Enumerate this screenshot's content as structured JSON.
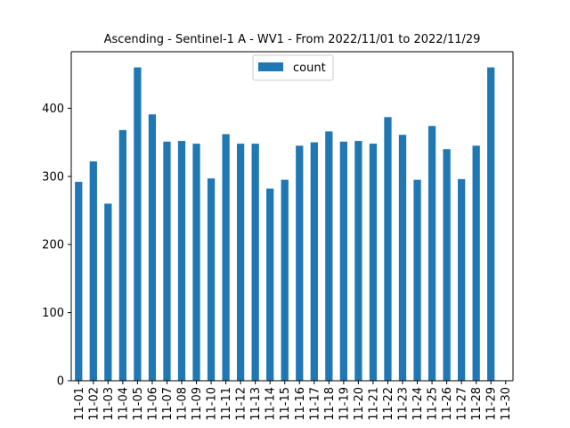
{
  "chart_data": {
    "type": "bar",
    "title": "Ascending - Sentinel-1 A - WV1 - From 2022/11/01 to 2022/11/29",
    "xlabel": "",
    "ylabel": "",
    "categories": [
      "11-01",
      "11-02",
      "11-03",
      "11-04",
      "11-05",
      "11-06",
      "11-07",
      "11-08",
      "11-09",
      "11-10",
      "11-11",
      "11-12",
      "11-13",
      "11-14",
      "11-15",
      "11-16",
      "11-17",
      "11-18",
      "11-19",
      "11-20",
      "11-21",
      "11-22",
      "11-23",
      "11-24",
      "11-25",
      "11-26",
      "11-27",
      "11-28",
      "11-29",
      "11-30"
    ],
    "series": [
      {
        "name": "count",
        "color": "#1f77b4",
        "values": [
          292,
          322,
          260,
          368,
          460,
          391,
          351,
          352,
          348,
          297,
          362,
          348,
          348,
          282,
          295,
          345,
          350,
          366,
          351,
          352,
          348,
          387,
          361,
          295,
          374,
          340,
          296,
          345,
          460,
          0
        ]
      }
    ],
    "ylim": [
      0,
      483
    ],
    "yticks": [
      0,
      100,
      200,
      300,
      400
    ],
    "grid": false,
    "legend_position": "top-center"
  }
}
